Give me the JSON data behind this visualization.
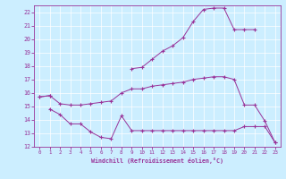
{
  "xlabel": "Windchill (Refroidissement éolien,°C)",
  "bg_color": "#cceeff",
  "line_color": "#993399",
  "xlim": [
    -0.5,
    23.5
  ],
  "ylim": [
    12,
    22.5
  ],
  "xticks": [
    0,
    1,
    2,
    3,
    4,
    5,
    6,
    7,
    8,
    9,
    10,
    11,
    12,
    13,
    14,
    15,
    16,
    17,
    18,
    19,
    20,
    21,
    22,
    23
  ],
  "yticks": [
    12,
    13,
    14,
    15,
    16,
    17,
    18,
    19,
    20,
    21,
    22
  ],
  "line1_x": [
    0,
    1
  ],
  "line1_y": [
    15.7,
    15.8
  ],
  "line2_x": [
    1,
    2,
    3,
    4,
    5,
    6,
    7,
    8,
    9,
    10,
    11,
    12,
    13,
    14,
    15,
    16,
    17,
    18,
    19,
    20,
    21,
    22,
    23
  ],
  "line2_y": [
    14.8,
    14.4,
    13.7,
    13.7,
    13.1,
    12.7,
    12.6,
    14.3,
    13.2,
    13.2,
    13.2,
    13.2,
    13.2,
    13.2,
    13.2,
    13.2,
    13.2,
    13.2,
    13.2,
    13.5,
    13.5,
    13.5,
    12.3
  ],
  "line3_x": [
    0,
    1,
    2,
    3,
    4,
    5,
    6,
    7,
    8,
    9,
    10,
    11,
    12,
    13,
    14,
    15,
    16,
    17,
    18,
    19,
    20,
    21,
    22,
    23
  ],
  "line3_y": [
    15.7,
    15.8,
    15.2,
    15.1,
    15.1,
    15.2,
    15.3,
    15.4,
    16.0,
    16.3,
    16.3,
    16.5,
    16.6,
    16.7,
    16.8,
    17.0,
    17.1,
    17.2,
    17.2,
    17.0,
    15.1,
    15.1,
    13.9,
    12.3
  ],
  "line4_x": [
    9,
    10,
    11,
    12,
    13,
    14,
    15,
    16,
    17,
    18,
    19,
    20,
    21
  ],
  "line4_y": [
    17.8,
    17.9,
    18.5,
    19.1,
    19.5,
    20.1,
    21.3,
    22.2,
    22.3,
    22.3,
    20.7,
    20.7,
    20.7
  ]
}
